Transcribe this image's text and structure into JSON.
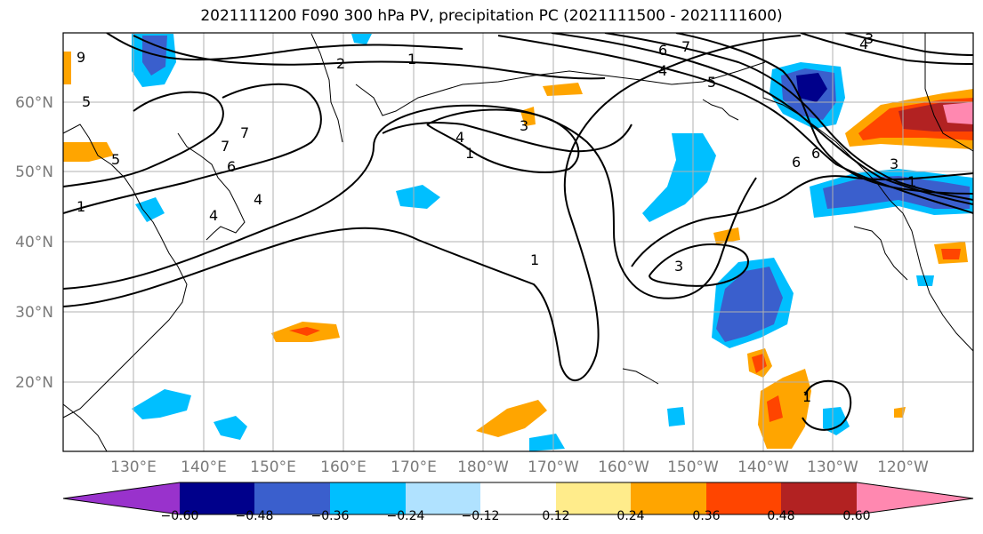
{
  "title": "2021111200 F090 300 hPa PV, precipitation PC (2021111500 - 2021111600)",
  "lat_labels": [
    "60°N",
    "50°N",
    "40°N",
    "30°N",
    "20°N"
  ],
  "lon_labels": [
    "130°E",
    "140°E",
    "150°E",
    "160°E",
    "170°E",
    "180°W",
    "170°W",
    "160°W",
    "150°W",
    "140°W",
    "130°W",
    "120°W"
  ],
  "colorbar": {
    "labels": [
      "−0.60",
      "−0.48",
      "−0.36",
      "−0.24",
      "−0.12",
      "0.12",
      "0.24",
      "0.36",
      "0.48",
      "0.60"
    ],
    "colors": [
      "#9932cc",
      "#00008b",
      "#3a5fcd",
      "#00bfff",
      "#b0e2ff",
      "#ffffff",
      "#ffec8b",
      "#ffa500",
      "#ff4500",
      "#b22222",
      "#ff88b0"
    ]
  },
  "contour_labels": [
    "9",
    "5",
    "1",
    "2",
    "1",
    "7",
    "6",
    "6",
    "4",
    "4",
    "5",
    "1",
    "6",
    "7",
    "5",
    "4",
    "3",
    "3",
    "4",
    "1",
    "3",
    "6",
    "7",
    "3",
    "4",
    "1",
    "1"
  ]
}
